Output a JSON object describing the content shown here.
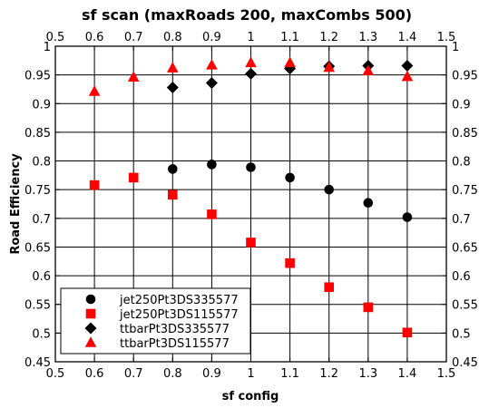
{
  "chart_data": {
    "type": "scatter",
    "title": "sf scan (maxRoads 200, maxCombs 500)",
    "xlabel": "sf config",
    "ylabel": "Road Efficiency",
    "xlim": [
      0.5,
      1.5
    ],
    "ylim": [
      0.45,
      1.0
    ],
    "x_ticks": [
      0.5,
      0.6,
      0.7,
      0.8,
      0.9,
      1.0,
      1.1,
      1.2,
      1.3,
      1.4,
      1.5
    ],
    "x_tick_labels": [
      "0.5",
      "0.6",
      "0.7",
      "0.8",
      "0.9",
      "1",
      "1.1",
      "1.2",
      "1.3",
      "1.4",
      "1.5"
    ],
    "y_ticks": [
      0.45,
      0.5,
      0.55,
      0.6,
      0.65,
      0.7,
      0.75,
      0.8,
      0.85,
      0.9,
      0.95,
      1.0
    ],
    "y_tick_labels": [
      "0.45",
      "0.5",
      "0.55",
      "0.6",
      "0.65",
      "0.7",
      "0.75",
      "0.8",
      "0.85",
      "0.9",
      "0.95",
      "1"
    ],
    "grid": true,
    "legend_position": "bottom-left",
    "series": [
      {
        "name": "jet250Pt3DS335577",
        "marker": "circle",
        "color": "#000000",
        "points": [
          [
            0.8,
            0.786
          ],
          [
            0.9,
            0.794
          ],
          [
            1.0,
            0.789
          ],
          [
            1.1,
            0.771
          ],
          [
            1.2,
            0.75
          ],
          [
            1.3,
            0.727
          ],
          [
            1.4,
            0.702
          ]
        ]
      },
      {
        "name": "jet250Pt3DS115577",
        "marker": "square",
        "color": "#ff0000",
        "points": [
          [
            0.6,
            0.758
          ],
          [
            0.7,
            0.771
          ],
          [
            0.8,
            0.741
          ],
          [
            0.9,
            0.707
          ],
          [
            1.0,
            0.658
          ],
          [
            1.1,
            0.622
          ],
          [
            1.2,
            0.58
          ],
          [
            1.3,
            0.545
          ],
          [
            1.4,
            0.501
          ]
        ]
      },
      {
        "name": "ttbarPt3DS335577",
        "marker": "diamond",
        "color": "#000000",
        "points": [
          [
            0.8,
            0.928
          ],
          [
            0.9,
            0.936
          ],
          [
            1.0,
            0.952
          ],
          [
            1.1,
            0.961
          ],
          [
            1.2,
            0.965
          ],
          [
            1.3,
            0.966
          ],
          [
            1.4,
            0.966
          ]
        ]
      },
      {
        "name": "ttbarPt3DS115577",
        "marker": "triangle",
        "color": "#ff0000",
        "points": [
          [
            0.6,
            0.921
          ],
          [
            0.7,
            0.946
          ],
          [
            0.8,
            0.962
          ],
          [
            0.9,
            0.967
          ],
          [
            1.0,
            0.971
          ],
          [
            1.1,
            0.971
          ],
          [
            1.2,
            0.963
          ],
          [
            1.3,
            0.957
          ],
          [
            1.4,
            0.947
          ]
        ]
      }
    ]
  }
}
